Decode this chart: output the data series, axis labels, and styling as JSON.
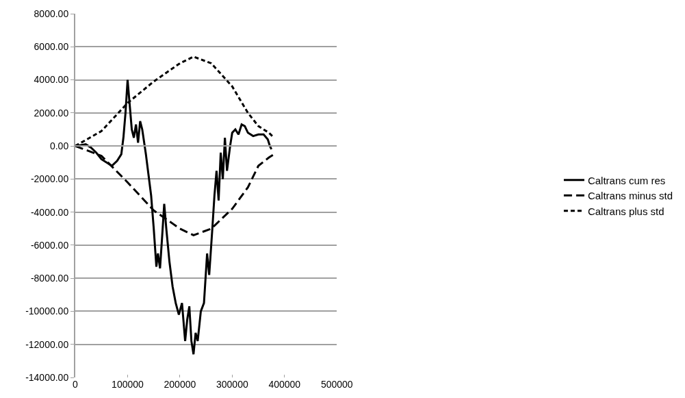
{
  "chart_data": {
    "type": "line",
    "xlim": [
      0,
      500000
    ],
    "xticks": [
      0,
      100000,
      200000,
      300000,
      400000,
      500000
    ],
    "ylim": [
      -14000,
      8000
    ],
    "yticks": [
      {
        "value": -14000,
        "label": "-14000.00"
      },
      {
        "value": -12000,
        "label": "-12000.00"
      },
      {
        "value": -10000,
        "label": "-10000.00"
      },
      {
        "value": -8000,
        "label": "-8000.00"
      },
      {
        "value": -6000,
        "label": "-6000.00"
      },
      {
        "value": -4000,
        "label": "-4000.00"
      },
      {
        "value": -2000,
        "label": "-2000.00"
      },
      {
        "value": 0,
        "label": "0.00"
      },
      {
        "value": 2000,
        "label": "2000.00"
      },
      {
        "value": 4000,
        "label": "4000.00"
      },
      {
        "value": 6000,
        "label": "6000.00"
      },
      {
        "value": 8000,
        "label": "8000.00"
      }
    ],
    "grid": "y",
    "legend": "right",
    "marker": "none",
    "series": [
      {
        "name": "Caltrans cum res",
        "color": "#000000",
        "line_style": "solid",
        "x": [
          0,
          10000,
          20000,
          30000,
          40000,
          50000,
          60000,
          70000,
          80000,
          88000,
          92000,
          96000,
          100000,
          104000,
          108000,
          112000,
          116000,
          120000,
          124000,
          128000,
          135000,
          145000,
          150000,
          155000,
          158000,
          162000,
          166000,
          170000,
          174000,
          180000,
          186000,
          192000,
          198000,
          204000,
          210000,
          214000,
          218000,
          222000,
          226000,
          230000,
          234000,
          240000,
          246000,
          252000,
          256000,
          262000,
          266000,
          270000,
          274000,
          278000,
          282000,
          286000,
          290000,
          296000,
          300000,
          306000,
          312000,
          318000,
          324000,
          330000,
          340000,
          350000,
          360000,
          368000,
          372000,
          375000
        ],
        "values": [
          0,
          50,
          100,
          -100,
          -400,
          -800,
          -1000,
          -1200,
          -900,
          -500,
          500,
          2000,
          4000,
          2500,
          1000,
          500,
          1300,
          200,
          1500,
          1000,
          -500,
          -3000,
          -5000,
          -7300,
          -6500,
          -7400,
          -5500,
          -3500,
          -5000,
          -7000,
          -8500,
          -9500,
          -10200,
          -9500,
          -11800,
          -10500,
          -9700,
          -11800,
          -12600,
          -11300,
          -11800,
          -10000,
          -9500,
          -6500,
          -7800,
          -5000,
          -3000,
          -1500,
          -3300,
          -400,
          -2000,
          500,
          -1500,
          0,
          800,
          1000,
          700,
          1300,
          1200,
          800,
          600,
          700,
          700,
          400,
          0,
          -200
        ]
      },
      {
        "name": "Caltrans minus std",
        "color": "#000000",
        "line_style": "dashed",
        "x": [
          0,
          50000,
          100000,
          150000,
          200000,
          226000,
          260000,
          300000,
          330000,
          350000,
          370000,
          380000
        ],
        "values": [
          0,
          -600,
          -2200,
          -3900,
          -5000,
          -5400,
          -5000,
          -3800,
          -2500,
          -1200,
          -700,
          -500
        ]
      },
      {
        "name": "Caltrans plus std",
        "color": "#000000",
        "line_style": "dotted",
        "x": [
          0,
          50000,
          100000,
          150000,
          200000,
          226000,
          260000,
          300000,
          330000,
          350000,
          370000,
          380000
        ],
        "values": [
          0,
          900,
          2600,
          3900,
          5000,
          5400,
          5000,
          3600,
          2000,
          1200,
          800,
          500
        ]
      }
    ]
  }
}
